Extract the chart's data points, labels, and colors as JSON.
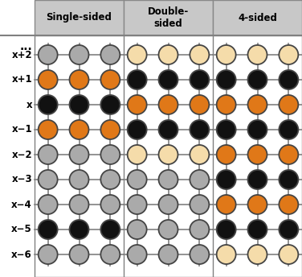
{
  "columns": [
    {
      "title": "Single-sided",
      "colors": [
        "gray",
        "orange",
        "black",
        "orange",
        "gray",
        "gray",
        "gray",
        "black",
        "gray"
      ]
    },
    {
      "title": "Double-\nsided",
      "colors": [
        "cream",
        "black",
        "orange",
        "black",
        "cream",
        "gray",
        "gray",
        "gray",
        "gray"
      ]
    },
    {
      "title": "4-sided",
      "colors": [
        "cream",
        "black",
        "orange",
        "black",
        "orange",
        "black",
        "orange",
        "black",
        "cream"
      ]
    }
  ],
  "color_map": {
    "gray": "#aaaaaa",
    "orange": "#e07818",
    "black": "#111111",
    "cream": "#f5dcaa"
  },
  "row_labels": [
    "x+2",
    "x+1",
    "x",
    "x−1",
    "x−2",
    "x−3",
    "x−4",
    "x−5",
    "x−6"
  ],
  "dots_per_row": 3,
  "grid_color": "#808080",
  "border_color": "#444444",
  "header_bg": "#c8c8c8",
  "header_border": "#888888"
}
